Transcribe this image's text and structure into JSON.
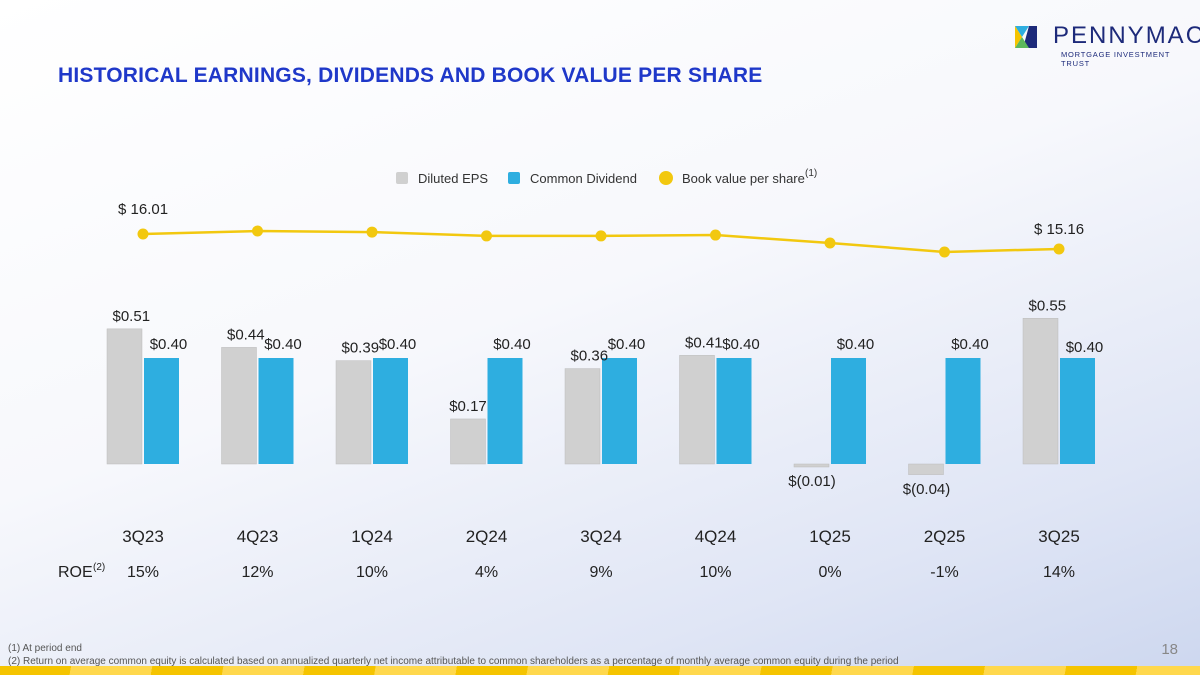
{
  "logo": {
    "name": "PENNYMAC",
    "tagline": "MORTGAGE INVESTMENT TRUST"
  },
  "title": "HISTORICAL EARNINGS, DIVIDENDS AND BOOK VALUE PER SHARE",
  "chart_data": {
    "type": "bar",
    "categories": [
      "3Q23",
      "4Q23",
      "1Q24",
      "2Q24",
      "3Q24",
      "4Q24",
      "1Q25",
      "2Q25",
      "3Q25"
    ],
    "series": [
      {
        "name": "Diluted EPS",
        "type": "bar",
        "color": "#d0d0d0",
        "values": [
          0.51,
          0.44,
          0.39,
          0.17,
          0.36,
          0.41,
          -0.01,
          -0.04,
          0.55
        ],
        "labels": [
          "$0.51",
          "$0.44",
          "$0.39",
          "$0.17",
          "$0.36",
          "$0.41",
          "$(0.01)",
          "$(0.04)",
          "$0.55"
        ]
      },
      {
        "name": "Common Dividend",
        "type": "bar",
        "color": "#2eaee0",
        "values": [
          0.4,
          0.4,
          0.4,
          0.4,
          0.4,
          0.4,
          0.4,
          0.4,
          0.4
        ],
        "labels": [
          "$0.40",
          "$0.40",
          "$0.40",
          "$0.40",
          "$0.40",
          "$0.40",
          "$0.40",
          "$0.40",
          "$0.40"
        ]
      },
      {
        "name": "Book value per share",
        "superscript": "(1)",
        "type": "line",
        "color": "#f2c80f",
        "values": [
          16.01,
          16.18,
          16.12,
          15.9,
          15.9,
          15.95,
          15.5,
          14.99,
          15.16
        ],
        "labels": [
          "$ 16.01",
          "",
          "",
          "",
          "",
          "",
          "",
          "",
          "$ 15.16"
        ]
      }
    ],
    "legend": "top",
    "roe": {
      "label": "ROE",
      "superscript": "(2)",
      "values": [
        "15%",
        "12%",
        "10%",
        "4%",
        "9%",
        "10%",
        "0%",
        "-1%",
        "14%"
      ]
    }
  },
  "footnotes": [
    "(1) At period end",
    "(2) Return on average common equity is calculated based on annualized quarterly net income attributable to common shareholders as a percentage of monthly average common equity during the period"
  ],
  "page_number": "18"
}
